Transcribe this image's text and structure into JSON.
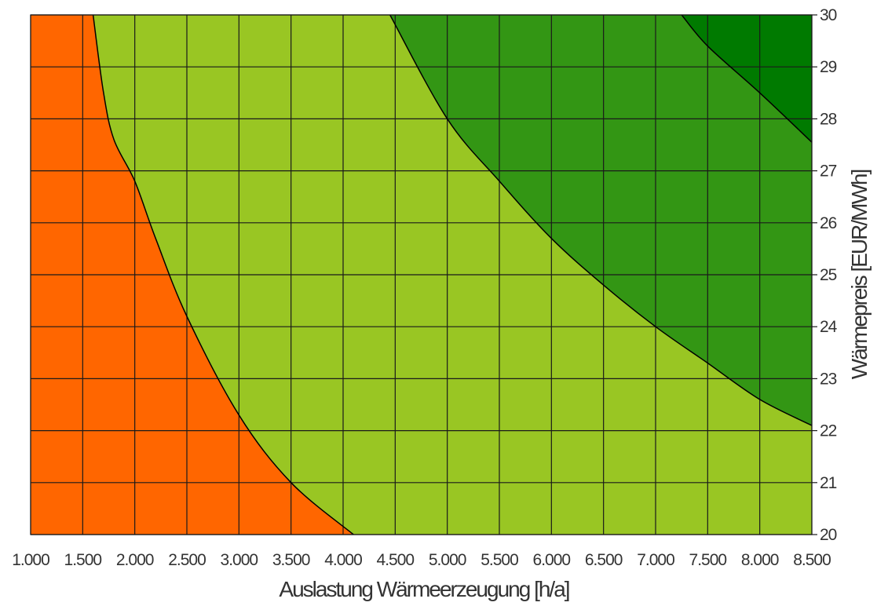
{
  "chart_data": {
    "type": "area",
    "xlabel": "Auslastung Wärmeerzeugung [h/a]",
    "ylabel": "Wärmepreis [EUR/MWh]",
    "xlim": [
      1000,
      8500
    ],
    "ylim": [
      20,
      30
    ],
    "x_ticks": [
      1000,
      1500,
      2000,
      2500,
      3000,
      3500,
      4000,
      4500,
      5000,
      5500,
      6000,
      6500,
      7000,
      7500,
      8000,
      8500
    ],
    "x_tick_labels": [
      "1.000",
      "1.500",
      "2.000",
      "2.500",
      "3.000",
      "3.500",
      "4.000",
      "4.500",
      "5.000",
      "5.500",
      "6.000",
      "6.500",
      "7.000",
      "7.500",
      "8.000",
      "8.500"
    ],
    "y_ticks": [
      20,
      21,
      22,
      23,
      24,
      25,
      26,
      27,
      28,
      29,
      30
    ],
    "y_tick_labels": [
      "20",
      "21",
      "22",
      "23",
      "24",
      "25",
      "26",
      "27",
      "28",
      "29",
      "30"
    ],
    "y_axis_position": "right",
    "grid": true,
    "legend": "none",
    "colors": {
      "region_1": "#ff6600",
      "region_2": "#99c623",
      "region_3": "#339614",
      "region_4": "#007a00",
      "boundary": "#000000",
      "grid": "#1a1a1a"
    },
    "boundaries": [
      {
        "x": [
          1600,
          1700,
          1800,
          2000,
          2200,
          2500,
          3000,
          3500,
          4100
        ],
        "y": [
          30,
          28.5,
          27.6,
          26.8,
          25.7,
          24.2,
          22.3,
          21.0,
          20.0
        ]
      },
      {
        "x": [
          4450,
          5000,
          5500,
          6000,
          6500,
          7000,
          7500,
          8000,
          8500
        ],
        "y": [
          30,
          28.0,
          26.8,
          25.7,
          24.8,
          24.0,
          23.3,
          22.6,
          22.1
        ]
      },
      {
        "x": [
          7250,
          7500,
          8000,
          8500
        ],
        "y": [
          30,
          29.4,
          28.5,
          27.55
        ]
      }
    ]
  }
}
